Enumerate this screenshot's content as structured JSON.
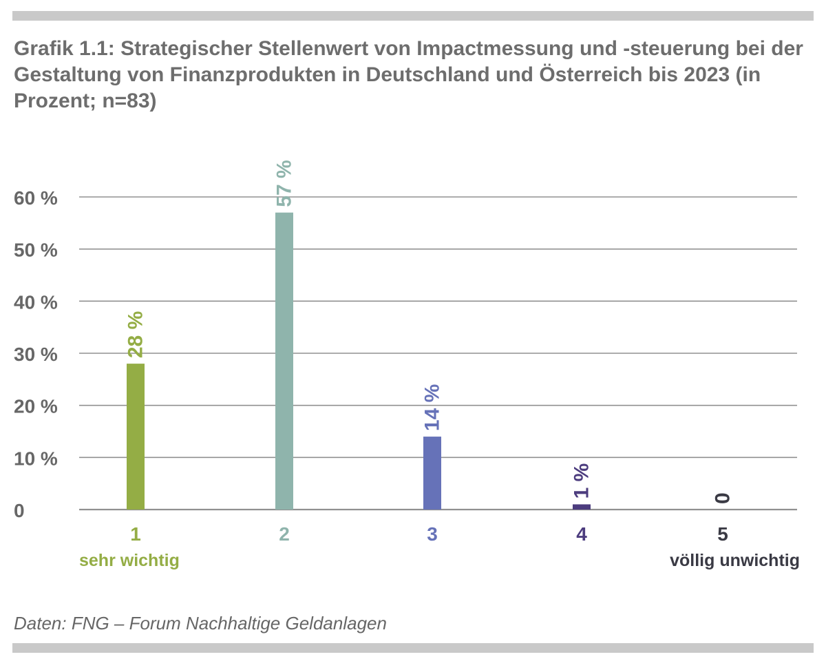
{
  "chart_data": {
    "type": "bar",
    "title": "Grafik 1.1: Strategischer Stellenwert von Impactmessung und -steuerung bei der Gestaltung von Finanzprodukten in Deutschland und Österreich bis 2023 (in Prozent; n=83)",
    "categories": [
      "1",
      "2",
      "3",
      "4",
      "5"
    ],
    "category_sublabels": [
      "sehr wichtig",
      "",
      "",
      "",
      "völlig unwichtig"
    ],
    "values": [
      28,
      57,
      14,
      1,
      0
    ],
    "value_labels": [
      "28 %",
      "57 %",
      "14 %",
      "1 %",
      "0"
    ],
    "colors": [
      "#94ad45",
      "#8fb4ac",
      "#6672b8",
      "#4c3c7e",
      "#3a3a44"
    ],
    "ylim": [
      0,
      60
    ],
    "yticks": [
      0,
      10,
      20,
      30,
      40,
      50,
      60
    ],
    "ytick_labels": [
      "0",
      "10 %",
      "20 %",
      "30 %",
      "40 %",
      "50 %",
      "60 %"
    ],
    "xlabel": "",
    "ylabel": "",
    "grid": true,
    "legend": "none"
  },
  "source": "Daten: FNG – Forum Nachhaltige Geldanlagen",
  "colors": {
    "axis_text": "#676767",
    "gridline": "#909090",
    "rule": "#c9c9c9"
  }
}
